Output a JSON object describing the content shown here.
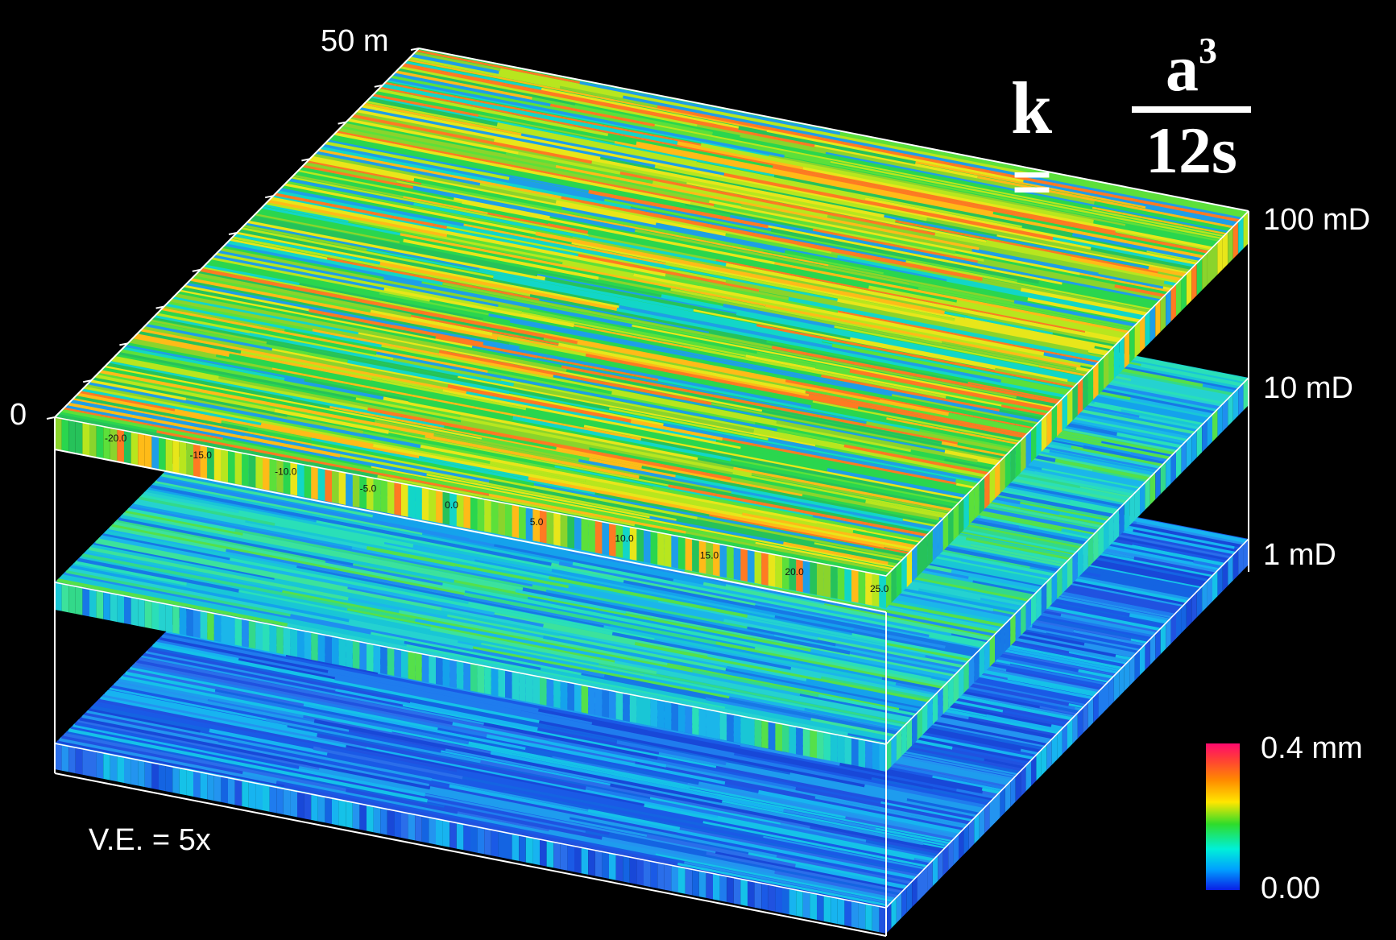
{
  "depth_axis": {
    "top_label": "50 m",
    "bottom_label": "0"
  },
  "formula": {
    "lhs": "k =",
    "numerator_base": "a",
    "numerator_exponent": "3",
    "denominator": "12s"
  },
  "layers": [
    {
      "label": "100 mD",
      "palette": [
        "#2ad64e",
        "#5ce03a",
        "#b8e61e",
        "#e8e61a",
        "#ffbb18",
        "#ff7a22",
        "#12d6c8",
        "#1e9ee8",
        "#26c25a",
        "#8ad42c"
      ]
    },
    {
      "label": "10 mD",
      "palette": [
        "#19c6d6",
        "#2adfb8",
        "#1bb6ea",
        "#33d98a",
        "#55e04a",
        "#14a2ec",
        "#1f8ef0",
        "#25d2d0",
        "#3ce29c",
        "#1778e6"
      ]
    },
    {
      "label": "1 mD",
      "palette": [
        "#1a5ae6",
        "#1f7cee",
        "#1464e2",
        "#2394f0",
        "#17b4f0",
        "#1848d8",
        "#2a6eea",
        "#1e9cee",
        "#15c2e8",
        "#2052e0"
      ]
    }
  ],
  "section_ticks": [
    "-20.0",
    "-15.0",
    "-10.0",
    "-5.0",
    "0.0",
    "5.0",
    "10.0",
    "15.0",
    "20.0",
    "25.0"
  ],
  "vertical_exaggeration": "V.E. = 5x",
  "colorbar": {
    "max_label": "0.4 mm",
    "min_label": "0.00"
  }
}
